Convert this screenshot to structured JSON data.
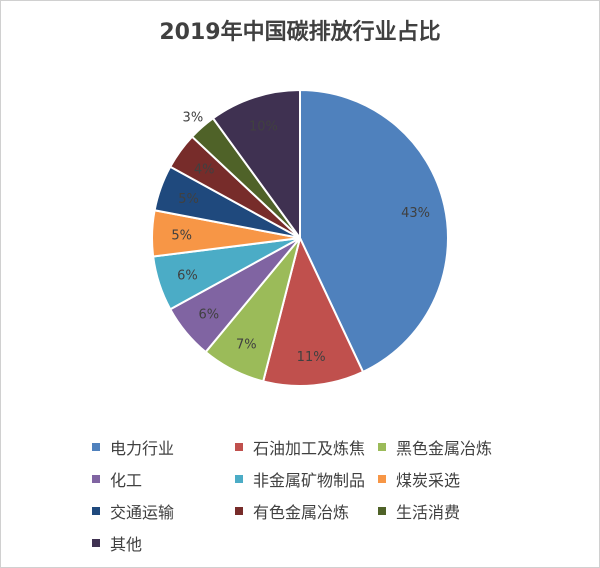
{
  "chart_data": {
    "type": "pie",
    "title": "2019年中国碳排放行业占比",
    "legend_position": "bottom",
    "categories": [
      "电力行业",
      "石油加工及炼焦",
      "黑色金属冶炼",
      "化工",
      "非金属矿物制品",
      "煤炭采选",
      "交通运输",
      "有色金属冶炼",
      "生活消费",
      "其他"
    ],
    "values": [
      43,
      11,
      7,
      6,
      6,
      5,
      5,
      4,
      3,
      10
    ],
    "data_labels": [
      "43%",
      "11%",
      "7%",
      "6%",
      "6%",
      "5%",
      "5%",
      "4%",
      "3%",
      "10%"
    ],
    "colors": [
      "#4F81BD",
      "#C0504D",
      "#9BBB59",
      "#8064A2",
      "#4BACC6",
      "#F79646",
      "#1F497D",
      "#772C2A",
      "#4F6228",
      "#3F3151"
    ]
  }
}
